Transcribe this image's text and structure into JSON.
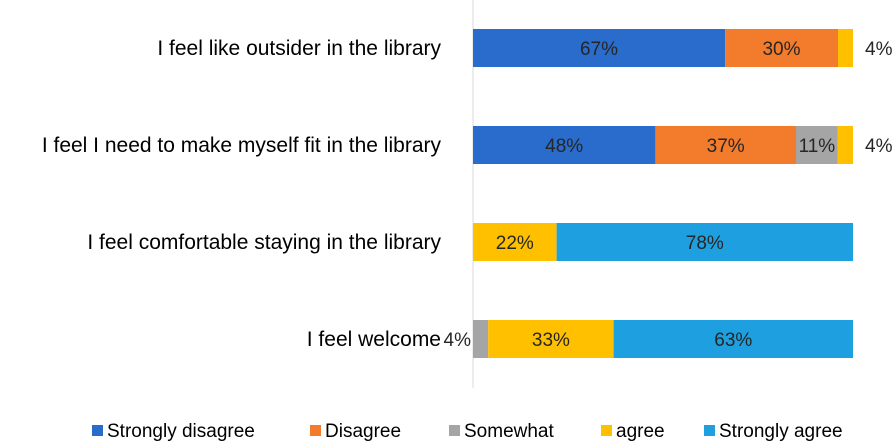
{
  "chart_data": {
    "type": "bar",
    "orientation": "horizontal",
    "stacked": true,
    "title": "",
    "xlabel": "",
    "ylabel": "",
    "xlim": [
      0,
      100
    ],
    "grid": false,
    "legend_position": "bottom",
    "categories": [
      "I feel like outsider in the library",
      "I feel I need to make myself fit in the library",
      "I feel comfortable staying in the library",
      "I feel welcome"
    ],
    "series": [
      {
        "name": "Strongly disagree",
        "color": "#2A6CCB",
        "values": [
          67,
          48,
          0,
          0
        ]
      },
      {
        "name": "Disagree",
        "color": "#F27B2C",
        "values": [
          30,
          37,
          0,
          0
        ]
      },
      {
        "name": "Somewhat",
        "color": "#A5A5A5",
        "values": [
          0,
          11,
          0,
          4
        ]
      },
      {
        "name": "agree",
        "color": "#FFC000",
        "values": [
          4,
          4,
          22,
          33
        ]
      },
      {
        "name": "Strongly agree",
        "color": "#1EA0E0",
        "values": [
          0,
          0,
          78,
          63
        ]
      }
    ],
    "data_labels": [
      [
        "67%",
        "30%",
        "",
        "4%",
        ""
      ],
      [
        "48%",
        "37%",
        "11%",
        "4%",
        ""
      ],
      [
        "",
        "",
        "",
        "22%",
        "78%"
      ],
      [
        "",
        "",
        "4%",
        "33%",
        "63%"
      ]
    ]
  }
}
